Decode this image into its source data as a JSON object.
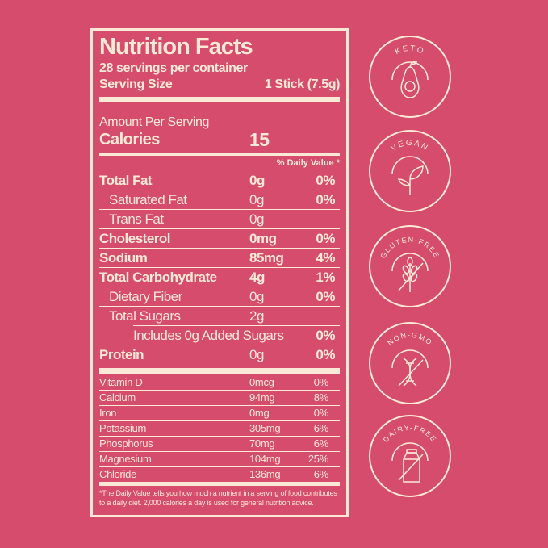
{
  "label": {
    "title": "Nutrition Facts",
    "servings": "28 servings per container",
    "serving_size_label": "Serving Size",
    "serving_size_value": "1 Stick (7.5g)",
    "amount_per_serving": "Amount Per Serving",
    "calories_label": "Calories",
    "calories_value": "15",
    "daily_value_header": "% Daily Value *",
    "nutrients": [
      {
        "name": "Total Fat",
        "amount": "0g",
        "dv": "0%"
      },
      {
        "name": "Saturated Fat",
        "amount": "0g",
        "dv": "0%"
      },
      {
        "name": "Trans Fat",
        "amount": "0g",
        "dv": ""
      },
      {
        "name": "Cholesterol",
        "amount": "0mg",
        "dv": "0%"
      },
      {
        "name": "Sodium",
        "amount": "85mg",
        "dv": "4%"
      },
      {
        "name": "Total Carbohydrate",
        "amount": "4g",
        "dv": "1%"
      },
      {
        "name": "Dietary Fiber",
        "amount": "0g",
        "dv": "0%"
      },
      {
        "name": "Total Sugars",
        "amount": "2g",
        "dv": ""
      },
      {
        "name": "Includes 0g Added Sugars",
        "amount": "",
        "dv": "0%"
      },
      {
        "name": "Protein",
        "amount": "0g",
        "dv": "0%"
      }
    ],
    "vitamins": [
      {
        "name": "Vitamin D",
        "amount": "0mcg",
        "dv": "0%"
      },
      {
        "name": "Calcium",
        "amount": "94mg",
        "dv": "8%"
      },
      {
        "name": "Iron",
        "amount": "0mg",
        "dv": "0%"
      },
      {
        "name": "Potassium",
        "amount": "305mg",
        "dv": "6%"
      },
      {
        "name": "Phosphorus",
        "amount": "70mg",
        "dv": "6%"
      },
      {
        "name": "Magnesium",
        "amount": "104mg",
        "dv": "25%"
      },
      {
        "name": "Chloride",
        "amount": "136mg",
        "dv": "6%"
      }
    ],
    "footnote": "*The Daily Value tells you how much a nutrient in a serving of food contributes to a daily diet. 2,000 calories a day is used for general nutrition advice."
  },
  "badges": [
    {
      "text": "KETO",
      "icon": "avocado-icon"
    },
    {
      "text": "VEGAN",
      "icon": "leaf-sprout-icon"
    },
    {
      "text": "GLUTEN-FREE",
      "icon": "wheat-crossed-icon"
    },
    {
      "text": "NON-GMO",
      "icon": "dna-crossed-icon"
    },
    {
      "text": "DAIRY-FREE",
      "icon": "milk-carton-crossed-icon"
    }
  ],
  "colors": {
    "background": "#d64c6c",
    "foreground": "#fbe9d8"
  }
}
